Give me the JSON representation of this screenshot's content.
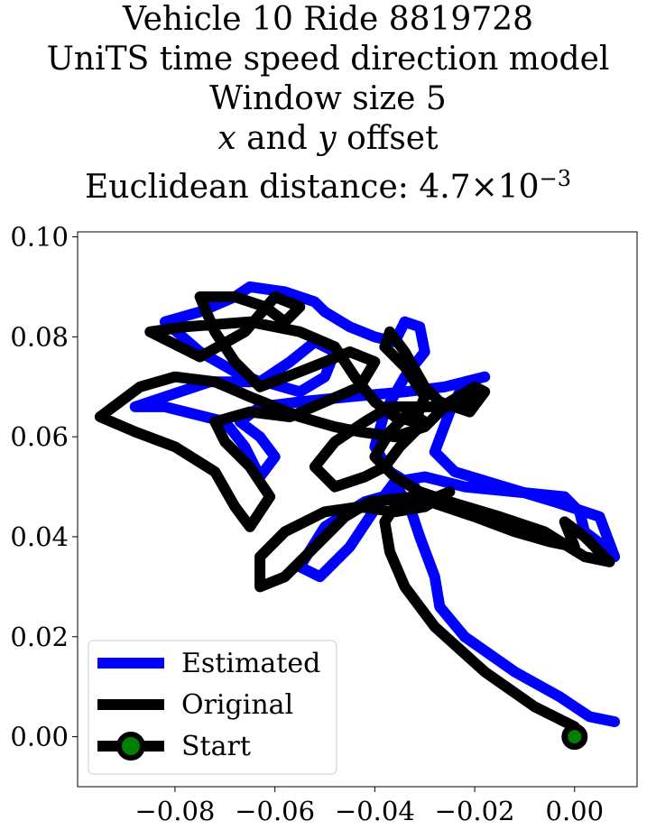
{
  "title": {
    "line1": "Vehicle 10 Ride 8819728",
    "line2": "UniTS time speed direction model",
    "line3": "Window size 5",
    "line4_x": "x",
    "line4_and": " and ",
    "line4_y": "y",
    "line4_rest": " offset",
    "line5_prefix": "Euclidean distance: ",
    "line5_mantissa": "4.7",
    "line5_times": "×",
    "line5_base": "10",
    "line5_exp": "−3"
  },
  "chart_data": {
    "type": "line",
    "xlim": [
      -0.0995,
      0.0125
    ],
    "ylim": [
      -0.01,
      0.101
    ],
    "xticks": [
      -0.08,
      -0.06,
      -0.04,
      -0.02,
      0.0
    ],
    "xtick_labels": [
      "−0.08",
      "−0.06",
      "−0.04",
      "−0.02",
      "0.00"
    ],
    "yticks": [
      0.0,
      0.02,
      0.04,
      0.06,
      0.08,
      0.1
    ],
    "ytick_labels": [
      "0.00",
      "0.02",
      "0.04",
      "0.06",
      "0.08",
      "0.10"
    ],
    "grid": false,
    "legend_position": "lower-left",
    "legend": [
      "Estimated",
      "Original",
      "Start"
    ],
    "series": [
      {
        "name": "Estimated",
        "color": "#0000ff",
        "points": [
          [
            0.008,
            0.003
          ],
          [
            0.003,
            0.004
          ],
          [
            -0.003,
            0.008
          ],
          [
            -0.012,
            0.013
          ],
          [
            -0.022,
            0.02
          ],
          [
            -0.027,
            0.026
          ],
          [
            -0.028,
            0.032
          ],
          [
            -0.031,
            0.04
          ],
          [
            -0.033,
            0.046
          ],
          [
            -0.035,
            0.049
          ],
          [
            -0.042,
            0.047
          ],
          [
            -0.05,
            0.042
          ],
          [
            -0.055,
            0.034
          ],
          [
            -0.051,
            0.032
          ],
          [
            -0.045,
            0.038
          ],
          [
            -0.039,
            0.047
          ],
          [
            -0.036,
            0.051
          ],
          [
            -0.03,
            0.052
          ],
          [
            -0.022,
            0.05
          ],
          [
            -0.012,
            0.049
          ],
          [
            -0.002,
            0.048
          ],
          [
            0.001,
            0.045
          ],
          [
            0.002,
            0.041
          ],
          [
            0.006,
            0.038
          ],
          [
            0.008,
            0.036
          ],
          [
            0.005,
            0.044
          ],
          [
            -0.004,
            0.047
          ],
          [
            -0.014,
            0.05
          ],
          [
            -0.024,
            0.053
          ],
          [
            -0.028,
            0.057
          ],
          [
            -0.025,
            0.065
          ],
          [
            -0.022,
            0.071
          ],
          [
            -0.018,
            0.072
          ],
          [
            -0.026,
            0.07
          ],
          [
            -0.034,
            0.069
          ],
          [
            -0.045,
            0.068
          ],
          [
            -0.055,
            0.067
          ],
          [
            -0.063,
            0.066
          ],
          [
            -0.067,
            0.063
          ],
          [
            -0.063,
            0.06
          ],
          [
            -0.06,
            0.056
          ],
          [
            -0.063,
            0.052
          ],
          [
            -0.066,
            0.058
          ],
          [
            -0.07,
            0.063
          ],
          [
            -0.082,
            0.066
          ],
          [
            -0.088,
            0.066
          ],
          [
            -0.082,
            0.068
          ],
          [
            -0.073,
            0.071
          ],
          [
            -0.062,
            0.071
          ],
          [
            -0.055,
            0.069
          ],
          [
            -0.05,
            0.072
          ],
          [
            -0.048,
            0.077
          ],
          [
            -0.052,
            0.079
          ],
          [
            -0.057,
            0.075
          ],
          [
            -0.063,
            0.071
          ],
          [
            -0.068,
            0.073
          ],
          [
            -0.075,
            0.077
          ],
          [
            -0.082,
            0.083
          ],
          [
            -0.075,
            0.085
          ],
          [
            -0.068,
            0.088
          ],
          [
            -0.065,
            0.09
          ],
          [
            -0.058,
            0.089
          ],
          [
            -0.052,
            0.087
          ],
          [
            -0.05,
            0.085
          ],
          [
            -0.045,
            0.082
          ],
          [
            -0.04,
            0.08
          ],
          [
            -0.036,
            0.079
          ],
          [
            -0.034,
            0.083
          ],
          [
            -0.031,
            0.082
          ],
          [
            -0.03,
            0.077
          ],
          [
            -0.034,
            0.072
          ],
          [
            -0.038,
            0.065
          ],
          [
            -0.04,
            0.058
          ],
          [
            -0.037,
            0.053
          ],
          [
            -0.032,
            0.05
          ]
        ]
      },
      {
        "name": "Original",
        "color": "#000000",
        "points": [
          [
            0.0,
            0.002
          ],
          [
            -0.008,
            0.006
          ],
          [
            -0.018,
            0.013
          ],
          [
            -0.028,
            0.022
          ],
          [
            -0.034,
            0.03
          ],
          [
            -0.037,
            0.037
          ],
          [
            -0.038,
            0.043
          ],
          [
            -0.036,
            0.046
          ],
          [
            -0.03,
            0.047
          ],
          [
            -0.025,
            0.049
          ],
          [
            -0.03,
            0.046
          ],
          [
            -0.036,
            0.045
          ],
          [
            -0.043,
            0.046
          ],
          [
            -0.05,
            0.045
          ],
          [
            -0.058,
            0.041
          ],
          [
            -0.063,
            0.036
          ],
          [
            -0.063,
            0.03
          ],
          [
            -0.058,
            0.032
          ],
          [
            -0.052,
            0.038
          ],
          [
            -0.046,
            0.044
          ],
          [
            -0.041,
            0.047
          ],
          [
            -0.032,
            0.048
          ],
          [
            -0.02,
            0.044
          ],
          [
            -0.012,
            0.041
          ],
          [
            -0.005,
            0.039
          ],
          [
            0.0,
            0.038
          ],
          [
            -0.002,
            0.043
          ],
          [
            0.002,
            0.04
          ],
          [
            0.007,
            0.035
          ],
          [
            0.002,
            0.036
          ],
          [
            -0.006,
            0.041
          ],
          [
            -0.015,
            0.044
          ],
          [
            -0.025,
            0.047
          ],
          [
            -0.031,
            0.049
          ],
          [
            -0.036,
            0.052
          ],
          [
            -0.04,
            0.056
          ],
          [
            -0.037,
            0.061
          ],
          [
            -0.033,
            0.065
          ],
          [
            -0.03,
            0.063
          ],
          [
            -0.035,
            0.058
          ],
          [
            -0.038,
            0.054
          ],
          [
            -0.042,
            0.052
          ],
          [
            -0.048,
            0.05
          ],
          [
            -0.052,
            0.054
          ],
          [
            -0.048,
            0.059
          ],
          [
            -0.042,
            0.063
          ],
          [
            -0.037,
            0.066
          ],
          [
            -0.03,
            0.066
          ],
          [
            -0.023,
            0.066
          ],
          [
            -0.018,
            0.069
          ],
          [
            -0.02,
            0.07
          ],
          [
            -0.025,
            0.067
          ],
          [
            -0.03,
            0.062
          ],
          [
            -0.036,
            0.06
          ],
          [
            -0.043,
            0.061
          ],
          [
            -0.048,
            0.062
          ],
          [
            -0.055,
            0.064
          ],
          [
            -0.06,
            0.066
          ],
          [
            -0.065,
            0.068
          ],
          [
            -0.072,
            0.071
          ],
          [
            -0.08,
            0.072
          ],
          [
            -0.087,
            0.07
          ],
          [
            -0.095,
            0.064
          ],
          [
            -0.088,
            0.061
          ],
          [
            -0.08,
            0.058
          ],
          [
            -0.072,
            0.053
          ],
          [
            -0.068,
            0.046
          ],
          [
            -0.065,
            0.042
          ],
          [
            -0.061,
            0.048
          ],
          [
            -0.065,
            0.054
          ],
          [
            -0.07,
            0.059
          ],
          [
            -0.072,
            0.063
          ],
          [
            -0.065,
            0.065
          ],
          [
            -0.057,
            0.064
          ],
          [
            -0.05,
            0.067
          ],
          [
            -0.043,
            0.07
          ],
          [
            -0.04,
            0.075
          ],
          [
            -0.045,
            0.077
          ],
          [
            -0.055,
            0.073
          ],
          [
            -0.063,
            0.07
          ],
          [
            -0.068,
            0.075
          ],
          [
            -0.072,
            0.081
          ],
          [
            -0.075,
            0.088
          ],
          [
            -0.068,
            0.088
          ],
          [
            -0.062,
            0.086
          ],
          [
            -0.058,
            0.083
          ],
          [
            -0.055,
            0.086
          ],
          [
            -0.06,
            0.088
          ],
          [
            -0.066,
            0.081
          ],
          [
            -0.075,
            0.076
          ],
          [
            -0.085,
            0.081
          ],
          [
            -0.078,
            0.082
          ],
          [
            -0.065,
            0.083
          ],
          [
            -0.055,
            0.081
          ],
          [
            -0.048,
            0.078
          ],
          [
            -0.044,
            0.072
          ],
          [
            -0.04,
            0.067
          ],
          [
            -0.036,
            0.064
          ],
          [
            -0.032,
            0.063
          ],
          [
            -0.03,
            0.068
          ],
          [
            -0.034,
            0.074
          ],
          [
            -0.038,
            0.078
          ],
          [
            -0.037,
            0.081
          ],
          [
            -0.034,
            0.077
          ],
          [
            -0.03,
            0.07
          ],
          [
            -0.027,
            0.067
          ],
          [
            -0.021,
            0.065
          ],
          [
            -0.018,
            0.069
          ]
        ]
      }
    ],
    "start": {
      "x": 0.0,
      "y": 0.0,
      "color": "#008000",
      "edge": "#000000"
    }
  }
}
